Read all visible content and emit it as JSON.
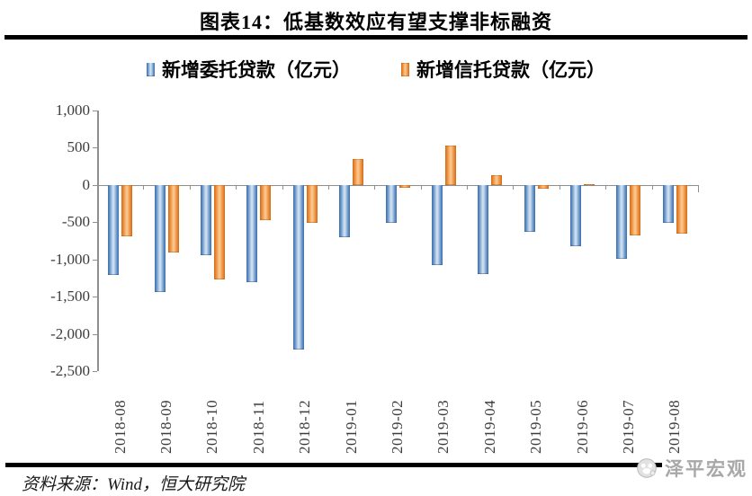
{
  "title": "图表14：低基数效应有望支撑非标融资",
  "legend": [
    {
      "label": "新增委托贷款（亿元）",
      "color": "#4f81bd"
    },
    {
      "label": "新增信托贷款（亿元）",
      "color": "#ed7d31"
    }
  ],
  "chart_data": {
    "type": "bar",
    "title": "图表14：低基数效应有望支撑非标融资",
    "categories": [
      "2018-08",
      "2018-09",
      "2018-10",
      "2018-11",
      "2018-12",
      "2019-01",
      "2019-02",
      "2019-03",
      "2019-04",
      "2019-05",
      "2019-06",
      "2019-07",
      "2019-08"
    ],
    "series": [
      {
        "name": "新增委托贷款（亿元）",
        "color": "#4f81bd",
        "values": [
          -1207,
          -1435,
          -949,
          -1310,
          -2210,
          -699,
          -508,
          -1070,
          -1197,
          -631,
          -827,
          -987,
          -513
        ]
      },
      {
        "name": "新增信托贷款（亿元）",
        "color": "#ed7d31",
        "values": [
          -688,
          -908,
          -1273,
          -467,
          -509,
          345,
          -37,
          528,
          129,
          -52,
          15,
          -676,
          -658
        ]
      }
    ],
    "xlabel": "",
    "ylabel": "",
    "ylim": [
      -2500,
      1000
    ],
    "ytick_step": 500,
    "ytick_labels": [
      "1,000",
      "500",
      "0",
      "-500",
      "-1,000",
      "-1,500",
      "-2,000",
      "-2,500"
    ],
    "grid": false,
    "legend_position": "top"
  },
  "source_note": "资料来源：Wind，恒大研究院",
  "watermark": "泽平宏观",
  "colors": {
    "bar_blue_edge": "#3a6cb0",
    "bar_blue_center": "#cfdff0",
    "bar_orange_edge": "#d26a14",
    "bar_orange_center": "#f9c68f",
    "axis_gray": "#8f8f8f",
    "rule_black": "#000000",
    "watermark_gray": "#a8a8a8"
  }
}
